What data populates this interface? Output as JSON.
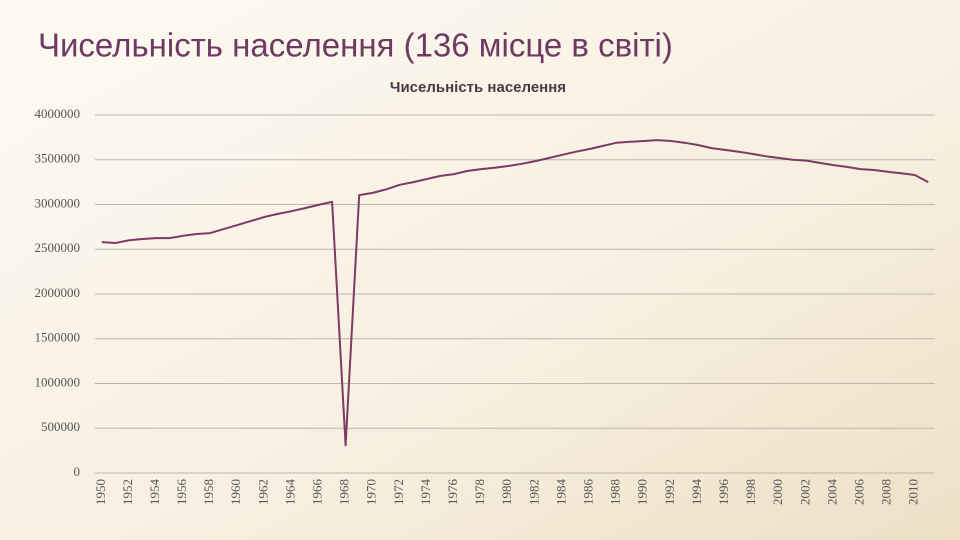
{
  "slide_title": "Чисельність населення (136 місце в світі)",
  "chart_data": {
    "type": "line",
    "title": "Чисельність населення",
    "categories": [
      "1950",
      null,
      "1952",
      null,
      "1954",
      null,
      "1956",
      null,
      "1958",
      null,
      "1960",
      null,
      "1962",
      null,
      "1964",
      null,
      "1966",
      null,
      "1968",
      null,
      "1970",
      null,
      "1972",
      null,
      "1974",
      null,
      "1976",
      null,
      "1978",
      null,
      "1980",
      null,
      "1982",
      null,
      "1984",
      null,
      "1986",
      null,
      "1988",
      null,
      "1990",
      null,
      "1992",
      null,
      "1994",
      null,
      "1996",
      null,
      "1998",
      null,
      "2000",
      null,
      "2002",
      null,
      "2004",
      null,
      "2006",
      null,
      "2008",
      null,
      "2010",
      null
    ],
    "values": [
      2580000,
      2570000,
      2600000,
      2615000,
      2625000,
      2625000,
      2650000,
      2670000,
      2680000,
      2725000,
      2770000,
      2815000,
      2860000,
      2895000,
      2925000,
      2960000,
      2995000,
      3030000,
      310000,
      3105000,
      3130000,
      3170000,
      3220000,
      3250000,
      3285000,
      3320000,
      3340000,
      3375000,
      3395000,
      3410000,
      3430000,
      3455000,
      3485000,
      3520000,
      3555000,
      3590000,
      3620000,
      3655000,
      3690000,
      3700000,
      3710000,
      3720000,
      3710000,
      3690000,
      3665000,
      3630000,
      3610000,
      3590000,
      3565000,
      3540000,
      3520000,
      3500000,
      3490000,
      3465000,
      3440000,
      3420000,
      3395000,
      3385000,
      3365000,
      3350000,
      3330000,
      3250000
    ],
    "color": "#7b3b62",
    "ylim": [
      0,
      4000000
    ],
    "yticks": [
      0,
      500000,
      1000000,
      1500000,
      2000000,
      2500000,
      3000000,
      3500000,
      4000000
    ],
    "grid": true
  }
}
